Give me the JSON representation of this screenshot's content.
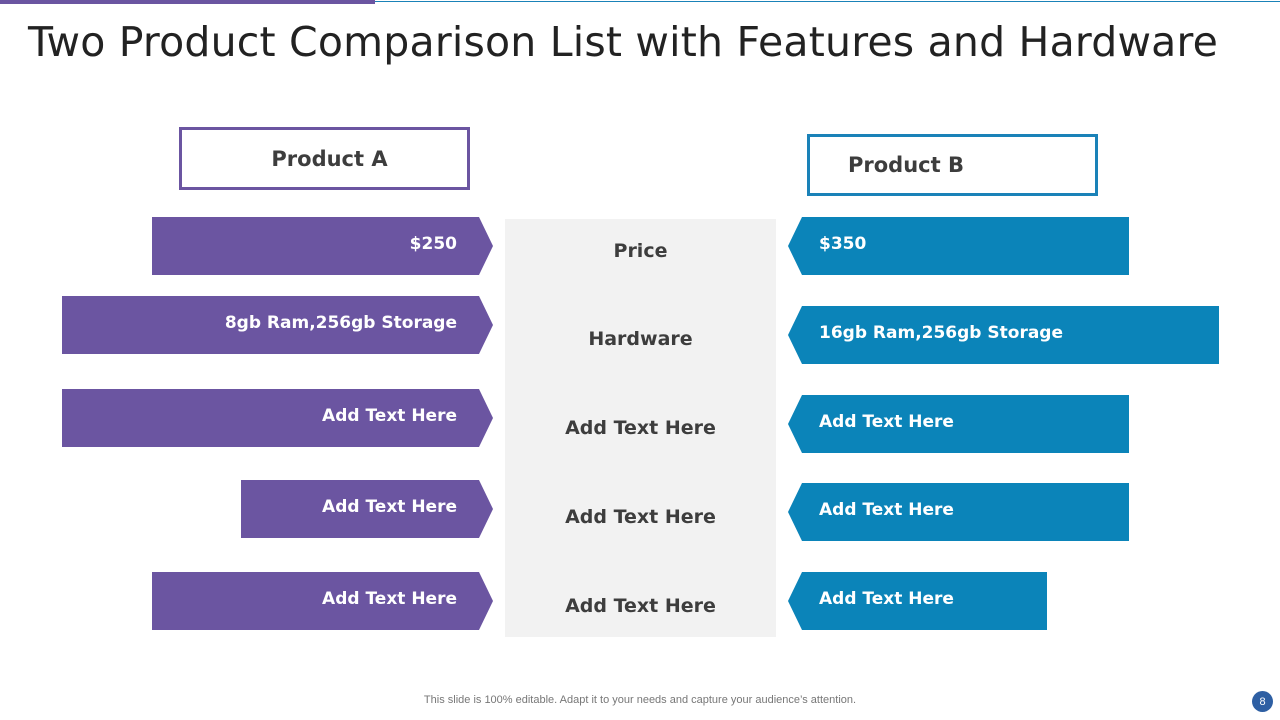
{
  "slide": {
    "title": "Two Product Comparison List with Features and Hardware",
    "footer": "This slide is 100% editable. Adapt it to your needs and capture your audience’s attention.",
    "page_number": "8"
  },
  "colors": {
    "product_a": "#6b55a1",
    "product_b": "#0b84b9",
    "center_panel": "#f2f2f2"
  },
  "product_a": {
    "label": "Product A",
    "rows": [
      "$250",
      "8gb Ram,256gb Storage",
      "Add Text Here",
      "Add Text Here",
      "Add Text Here"
    ]
  },
  "product_b": {
    "label": "Product B",
    "rows": [
      "$350",
      "16gb Ram,256gb Storage",
      "Add Text Here",
      "Add Text Here",
      "Add Text Here"
    ]
  },
  "features": [
    "Price",
    "Hardware",
    "Add Text Here",
    "Add Text Here",
    "Add Text Here"
  ]
}
